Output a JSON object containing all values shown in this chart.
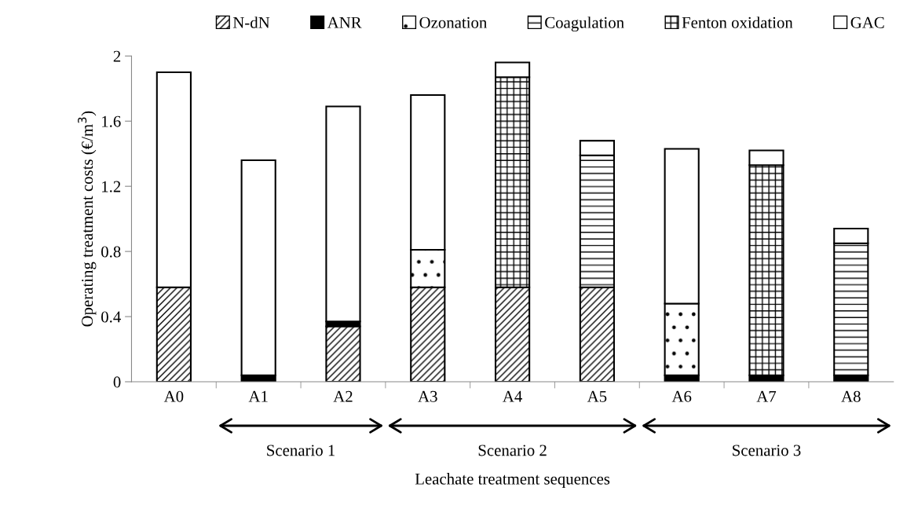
{
  "chart_data": {
    "type": "bar",
    "stacked": true,
    "xlabel": "Leachate treatment sequences",
    "ylabel": "Operating treatment costs (€/m$^{3}$)",
    "categories": [
      "A0",
      "A1",
      "A2",
      "A3",
      "A4",
      "A5",
      "A6",
      "A7",
      "A8"
    ],
    "series": [
      {
        "name": "N-dN",
        "color": "#000000",
        "values": [
          0.58,
          null,
          0.34,
          0.58,
          0.58,
          0.58,
          null,
          null,
          null
        ]
      },
      {
        "name": "ANR",
        "color": "#000000",
        "values": [
          null,
          0.04,
          0.03,
          null,
          null,
          null,
          0.04,
          0.04,
          0.04
        ]
      },
      {
        "name": "Ozonation",
        "color": "#000000",
        "values": [
          null,
          null,
          null,
          0.23,
          null,
          null,
          0.44,
          null,
          null
        ]
      },
      {
        "name": "Coagulation",
        "color": "#000000",
        "values": [
          null,
          null,
          null,
          null,
          null,
          0.81,
          null,
          null,
          0.81
        ]
      },
      {
        "name": "Fenton oxidation",
        "color": "#000000",
        "values": [
          null,
          null,
          null,
          null,
          1.29,
          null,
          null,
          1.29,
          null
        ]
      },
      {
        "name": "GAC",
        "color": "#ffffff",
        "values": [
          1.32,
          1.32,
          1.32,
          0.95,
          0.09,
          0.09,
          0.95,
          0.09,
          0.09
        ]
      }
    ],
    "ylim": [
      0,
      2
    ],
    "yticks": [
      0,
      0.4,
      0.8,
      1.2,
      1.6,
      2
    ],
    "grid": false,
    "legend": "top",
    "annotations": [
      "Scenario 1",
      "Scenario 2",
      "Scenario 3"
    ]
  }
}
